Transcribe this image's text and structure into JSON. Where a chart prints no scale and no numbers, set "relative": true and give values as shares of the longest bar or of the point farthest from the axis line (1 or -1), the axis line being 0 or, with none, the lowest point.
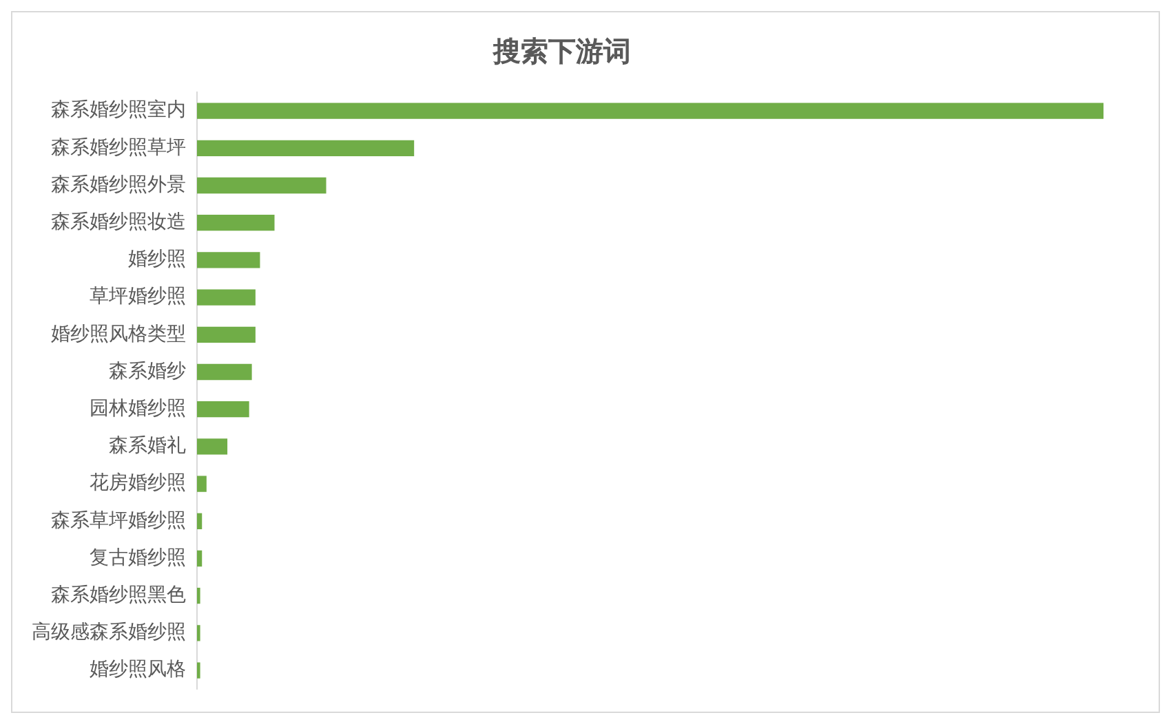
{
  "chart_data": {
    "type": "bar",
    "orientation": "horizontal",
    "relative": true,
    "title": "搜索下游词",
    "categories": [
      "森系婚纱照室内",
      "森系婚纱照草坪",
      "森系婚纱照外景",
      "森系婚纱照妆造",
      "婚纱照",
      "草坪婚纱照",
      "婚纱照风格类型",
      "森系婚纱",
      "园林婚纱照",
      "森系婚礼",
      "花房婚纱照",
      "森系草坪婚纱照",
      "复古婚纱照",
      "森系婚纱照黑色",
      "高级感森系婚纱照",
      "婚纱照风格"
    ],
    "values": [
      1,
      0.239,
      0.142,
      0.085,
      0.069,
      0.064,
      0.064,
      0.06,
      0.057,
      0.033,
      0.01,
      0.005,
      0.005,
      0.003,
      0.003,
      0.003
    ],
    "color": "#70ad47",
    "legend": false
  }
}
